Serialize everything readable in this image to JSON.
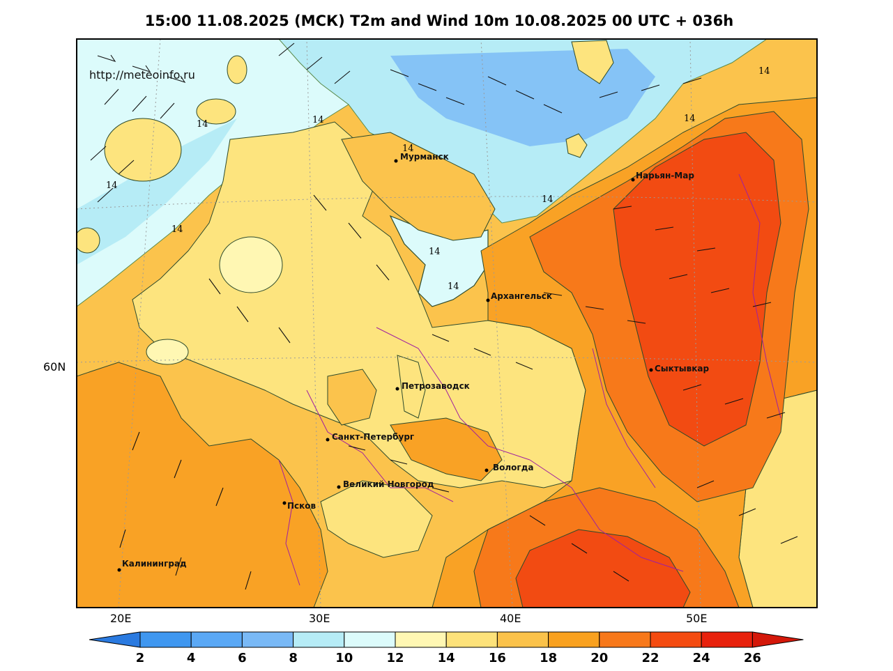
{
  "title": "15:00 11.08.2025 (МСК) T2m and Wind 10m 10.08.2025 00 UTC + 036h",
  "watermark": "http://meteoinfo.ru",
  "axes": {
    "x_ticks": [
      "20E",
      "30E",
      "40E",
      "50E"
    ],
    "y_ticks": [
      "60N"
    ]
  },
  "cities": [
    {
      "name": "Мурманск"
    },
    {
      "name": "Нарьян-Мар"
    },
    {
      "name": "Архангельск"
    },
    {
      "name": "Сыктывкар"
    },
    {
      "name": "Петрозаводск"
    },
    {
      "name": "Санкт-Петербург"
    },
    {
      "name": "Вологда"
    },
    {
      "name": "Великий Новгород"
    },
    {
      "name": "Псков"
    },
    {
      "name": "Калининград"
    }
  ],
  "isoline_labels": [
    "14",
    "14",
    "14",
    "14",
    "14",
    "14",
    "14",
    "14",
    "14",
    "14"
  ],
  "colorbar": {
    "labels": [
      "2",
      "4",
      "6",
      "8",
      "10",
      "12",
      "14",
      "16",
      "18",
      "20",
      "22",
      "24",
      "26"
    ],
    "colors": [
      "#3a8ee6",
      "#3f97f0",
      "#5aa8f5",
      "#79b9f6",
      "#b6ecf6",
      "#dcfbfb",
      "#fff7b3",
      "#fde27a",
      "#fbc24a",
      "#f9a11f",
      "#f7781a",
      "#f44b10",
      "#e8210c"
    ],
    "under_color": "#2a7ae0",
    "over_color": "#d4180a"
  },
  "palette": {
    "sea_cold": "#9fd4f2",
    "sea_cool": "#bfe9f8",
    "land_16": "#fde47e",
    "land_18": "#fbc34c",
    "land_20": "#f9a225",
    "land_22": "#f7791a",
    "land_24": "#f24b12"
  }
}
